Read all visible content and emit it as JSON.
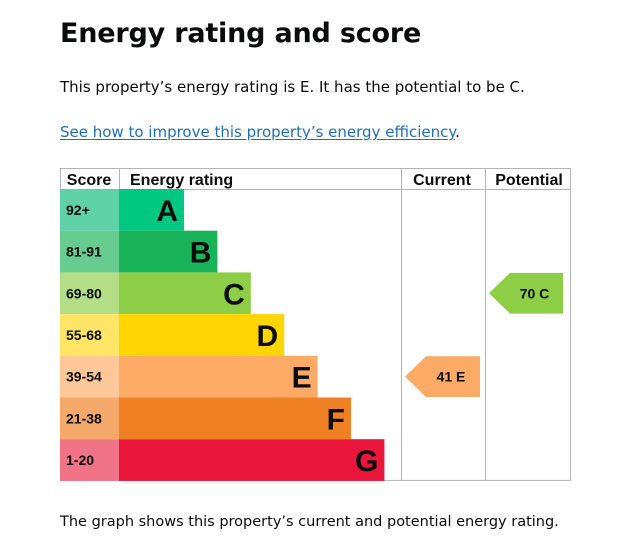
{
  "page": {
    "title": "Energy rating and score",
    "summary": "This property’s energy rating is E. It has the potential to be C.",
    "link_text": "See how to improve this property’s energy efficiency",
    "link_suffix": ".",
    "caption": "The graph shows this property’s current and potential energy rating."
  },
  "chart_data": {
    "type": "bar",
    "headers": {
      "score": "Score",
      "rating": "Energy rating",
      "current": "Current",
      "potential": "Potential"
    },
    "bands": [
      {
        "letter": "A",
        "score_range": "92+",
        "band_color": "#00c781",
        "score_color": "#5fd1a7"
      },
      {
        "letter": "B",
        "score_range": "81-91",
        "band_color": "#19b459",
        "score_color": "#66cc8f"
      },
      {
        "letter": "C",
        "score_range": "69-80",
        "band_color": "#8dce46",
        "score_color": "#b3de85"
      },
      {
        "letter": "D",
        "score_range": "55-68",
        "band_color": "#ffd500",
        "score_color": "#ffe466"
      },
      {
        "letter": "E",
        "score_range": "39-54",
        "band_color": "#fcaa65",
        "score_color": "#fdc797"
      },
      {
        "letter": "F",
        "score_range": "21-38",
        "band_color": "#ef8023",
        "score_color": "#f4a86a"
      },
      {
        "letter": "G",
        "score_range": "1-20",
        "band_color": "#e9153b",
        "score_color": "#f17388"
      }
    ],
    "current": {
      "score": 41,
      "letter": "E",
      "label": "41  E",
      "color": "#fcaa65"
    },
    "potential": {
      "score": 70,
      "letter": "C",
      "label": "70  C",
      "color": "#8dce46"
    }
  }
}
